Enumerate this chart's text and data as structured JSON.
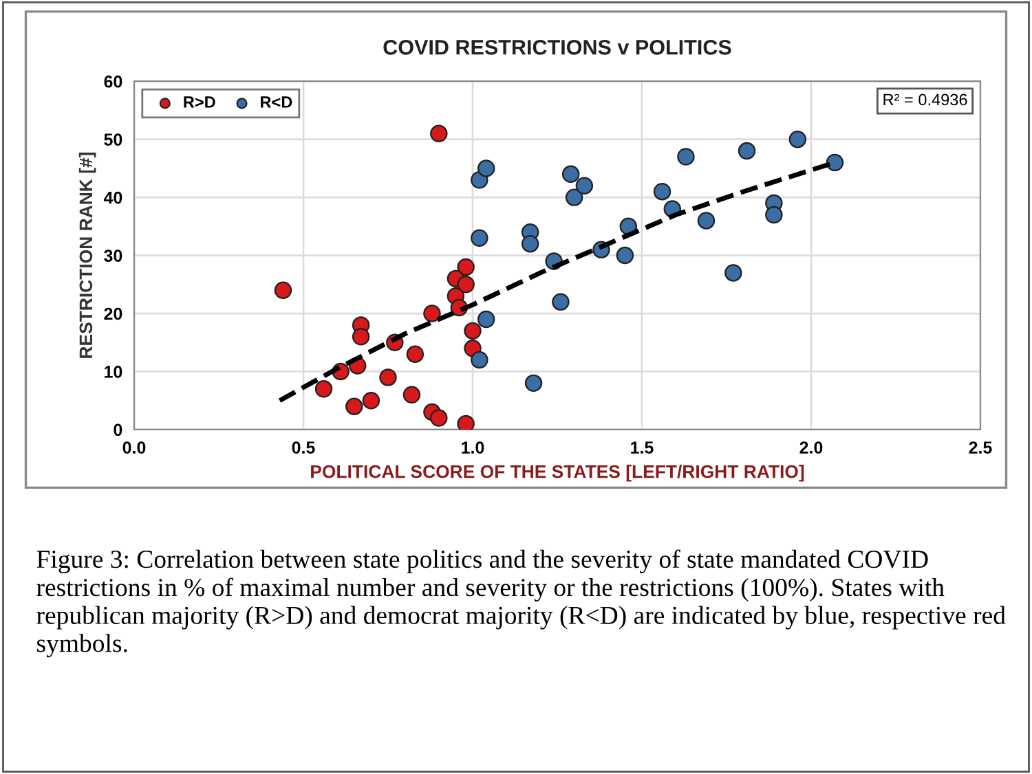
{
  "chart_data": {
    "type": "scatter",
    "title": "COVID RESTRICTIONS v POLITICS",
    "xlabel": "POLITICAL SCORE OF THE STATES [LEFT/RIGHT RATIO]",
    "ylabel": "RESTRICTION RANK [#]",
    "xlim": [
      0,
      2.5
    ],
    "xticks": [
      {
        "value": 0,
        "label": "0.0"
      },
      0.5,
      {
        "value": 1,
        "label": "1.0"
      },
      1.5,
      {
        "value": 2,
        "label": "2.0"
      },
      2.5
    ],
    "ylim": [
      0,
      60
    ],
    "yticks": [
      0,
      10,
      20,
      30,
      40,
      50,
      60
    ],
    "grid": true,
    "legend": "top left",
    "marker": "circle",
    "series": [
      {
        "name": "R>D",
        "color": "#d7191c",
        "x": [
          0.44,
          0.9,
          0.98,
          0.95,
          0.98,
          0.95,
          0.96,
          0.88,
          1.0,
          1.0,
          0.67,
          0.67,
          0.77,
          0.83,
          0.66,
          0.61,
          0.56,
          0.75,
          0.82,
          0.7,
          0.65,
          0.88,
          0.9,
          0.98
        ],
        "values": [
          24,
          51,
          28,
          26,
          25,
          23,
          21,
          20,
          17,
          14,
          18,
          16,
          15,
          13,
          11,
          10,
          7,
          9,
          6,
          5,
          4,
          3,
          2,
          1
        ]
      },
      {
        "name": "R<D",
        "color": "#3a6ea5",
        "x": [
          1.02,
          1.04,
          1.02,
          1.17,
          1.17,
          1.24,
          1.26,
          1.04,
          1.02,
          1.18,
          1.29,
          1.3,
          1.33,
          1.38,
          1.45,
          1.46,
          1.56,
          1.59,
          1.63,
          1.69,
          1.77,
          1.81,
          1.89,
          1.89,
          1.96,
          2.07
        ],
        "values": [
          43,
          45,
          33,
          34,
          32,
          29,
          22,
          19,
          12,
          8,
          44,
          40,
          42,
          31,
          30,
          35,
          41,
          38,
          47,
          36,
          27,
          48,
          39,
          37,
          50,
          46
        ]
      },
      {
        "type": "line",
        "color": "#000000",
        "marker": "none",
        "line_style": "dashed",
        "x": [
          0.43,
          0.6,
          0.8,
          1.0,
          1.2,
          1.4,
          1.6,
          1.8,
          2.07
        ],
        "values": [
          5,
          10.5,
          16.5,
          21.5,
          27,
          32,
          37,
          41,
          46
        ]
      }
    ],
    "annotations": [
      "R² = 0.4936",
      "Figure 3: Correlation between state politics and the severity of state mandated COVID restrictions in % of maximal number and severity or the restrictions (100%). States with republican majority (R>D) and democrat majority (R<D) are indicated by blue, respective red symbols."
    ]
  }
}
